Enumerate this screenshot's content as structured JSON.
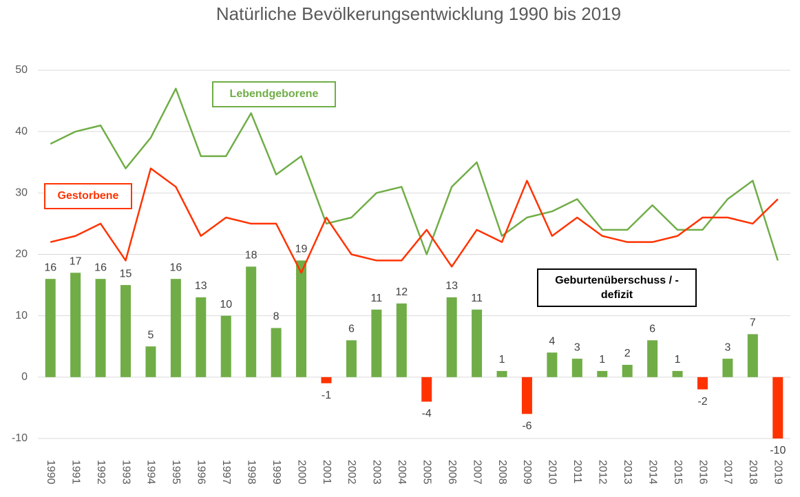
{
  "chart_data": {
    "type": "bar",
    "title": "Natürliche Bevölkerungsentwicklung 1990 bis 2019",
    "categories": [
      "1990",
      "1991",
      "1992",
      "1993",
      "1994",
      "1995",
      "1996",
      "1997",
      "1998",
      "1999",
      "2000",
      "2001",
      "2002",
      "2003",
      "2004",
      "2005",
      "2006",
      "2007",
      "2008",
      "2009",
      "2010",
      "2011",
      "2012",
      "2013",
      "2014",
      "2015",
      "2016",
      "2017",
      "2018",
      "2019"
    ],
    "series": [
      {
        "name": "Geburtenüberschuss / -defizit",
        "type": "bar",
        "color": "#70ad47",
        "negative_color": "#ff3300",
        "values": [
          16,
          17,
          16,
          15,
          5,
          16,
          13,
          10,
          18,
          8,
          19,
          -1,
          6,
          11,
          12,
          -4,
          13,
          11,
          1,
          -6,
          4,
          3,
          1,
          2,
          6,
          1,
          -2,
          3,
          7,
          -10
        ]
      },
      {
        "name": "Lebendgeborene",
        "type": "line",
        "color": "#70ad47",
        "values": [
          38,
          40,
          41,
          34,
          39,
          47,
          36,
          36,
          43,
          33,
          36,
          25,
          26,
          30,
          31,
          20,
          31,
          35,
          23,
          26,
          27,
          29,
          24,
          24,
          28,
          24,
          24,
          29,
          32,
          19
        ]
      },
      {
        "name": "Gestorbene",
        "type": "line",
        "color": "#ff3300",
        "values": [
          22,
          23,
          25,
          19,
          34,
          31,
          23,
          26,
          25,
          25,
          17,
          26,
          20,
          19,
          19,
          24,
          18,
          24,
          22,
          32,
          23,
          26,
          23,
          22,
          22,
          23,
          26,
          26,
          25,
          29
        ]
      }
    ],
    "ylim": [
      -10,
      50
    ],
    "yticks": [
      -10,
      0,
      10,
      20,
      30,
      40,
      50
    ],
    "grid": true
  }
}
